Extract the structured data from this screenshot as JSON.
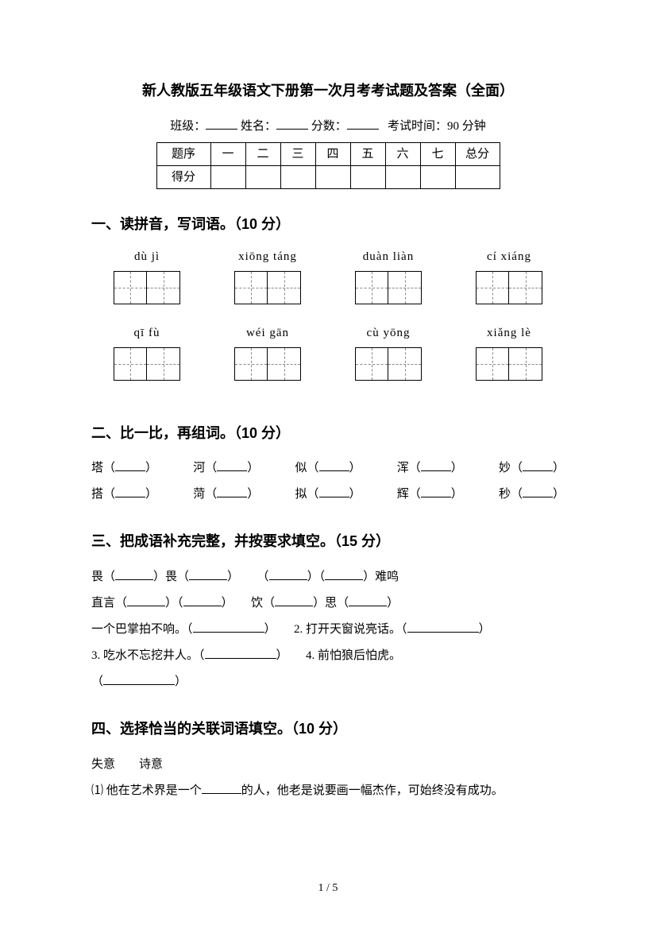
{
  "title": "新人教版五年级语文下册第一次月考考试题及答案（全面）",
  "meta": {
    "class_label": "班级：",
    "name_label": "姓名：",
    "score_label": "分数：",
    "time_label": "考试时间：90 分钟"
  },
  "score_table": {
    "row1_label": "题序",
    "row2_label": "得分",
    "cols": [
      "一",
      "二",
      "三",
      "四",
      "五",
      "六",
      "七"
    ],
    "total": "总分"
  },
  "q1": {
    "head": "一、读拼音，写词语。（10 分）",
    "items": [
      "dù  jì",
      "xiōng táng",
      "duàn liàn",
      "cí xiáng",
      "qī  fù",
      "wéi gān",
      "cù yōng",
      "xiǎng lè"
    ]
  },
  "q2": {
    "head": "二、比一比，再组词。（10 分）",
    "row1": [
      "塔",
      "河",
      "似",
      "浑",
      "妙"
    ],
    "row2": [
      "搭",
      "菏",
      "拟",
      "辉",
      "秒"
    ]
  },
  "q3": {
    "head": "三、把成语补充完整，并按要求填空。（15 分）",
    "l1a": "畏（",
    "l1b": "）畏（",
    "l1c": "）",
    "l1d": "（",
    "l1e": "）（",
    "l1f": "）难鸣",
    "l2a": "直言（",
    "l2b": "）（",
    "l2c": "）",
    "l2d": "饮（",
    "l2e": "）思（",
    "l2f": "）",
    "l3a": "一个巴掌拍不响。（",
    "l3b": "）",
    "l3c": "2. 打开天窗说亮话。（",
    "l3d": "）",
    "l4a": "3. 吃水不忘挖井人。（",
    "l4b": "）",
    "l4c": "4. 前怕狼后怕虎。",
    "l5a": "（",
    "l5b": "）"
  },
  "q4": {
    "head": "四、选择恰当的关联词语填空。（10 分）",
    "words": "失意　　诗意",
    "line1a": "⑴ 他在艺术界是一个",
    "line1b": "的人，他老是说要画一幅杰作，可始终没有成功。"
  },
  "footer": "1  /  5"
}
